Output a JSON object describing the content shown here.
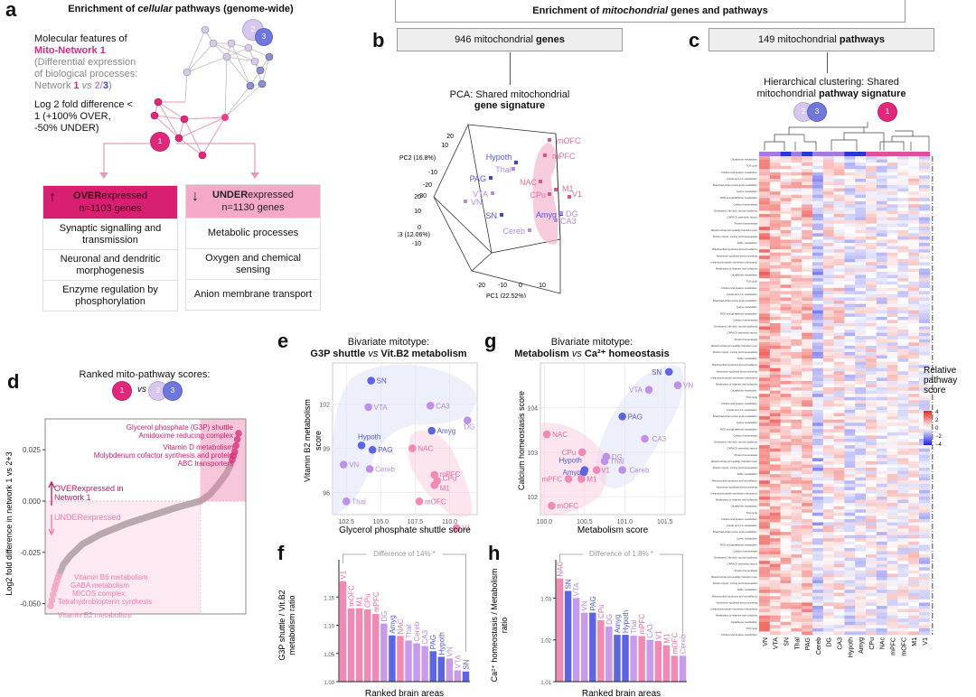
{
  "panel_labels": {
    "a": "a",
    "b": "b",
    "c": "c",
    "d": "d",
    "e": "e",
    "f": "f",
    "g": "g",
    "h": "h"
  },
  "colors": {
    "network1": "#e0287a",
    "network1_light": "#f390b8",
    "network2": "#c3a2e6",
    "network3": "#5d66e0",
    "grey": "#b7a9ae",
    "heat_pos": "#e8261e",
    "heat_neg": "#1d1ee6"
  },
  "panel_a": {
    "title_pre": "Enrichment of ",
    "title_em": "cellular",
    "title_post": " pathways (genome-wide)",
    "desc_line1": "Molecular features of",
    "desc_network": "Mito-Network 1",
    "desc_line3": "(Differential expression",
    "desc_line4": "of biological processes:",
    "desc_line5_pre": "Network ",
    "desc_n1": "1",
    "desc_vs": " vs ",
    "desc_n2": "2",
    "desc_slash": "/",
    "desc_n3": "3",
    "desc_close": ")",
    "log_line1": "Log 2 fold difference <",
    "log_line2": "1 (+100% OVER,",
    "log_line3": "-50% UNDER)",
    "node_labels": {
      "n1": "1",
      "n2": "2",
      "n3": "3"
    },
    "over": {
      "arrow": "↑",
      "bold": "OVER",
      "rest": "expressed",
      "count": "n=1103 genes",
      "items": [
        "Synaptic signalling and transmission",
        "Neuronal and dendritic morphogenesis",
        "Enzyme regulation by phosphorylation"
      ]
    },
    "under": {
      "arrow": "↓",
      "bold": "UNDER",
      "rest": "expressed",
      "count": "n=1130 genes",
      "items": [
        "Metabolic processes",
        "Oxygen and chemical sensing",
        "Anion membrane transport"
      ]
    }
  },
  "header_mito": {
    "pre": "Enrichment of ",
    "em": "mitochondrial",
    "post": " genes and pathways"
  },
  "panel_b": {
    "box_pre": "946 mitochondrial ",
    "box_bold": "genes",
    "title_line1": "PCA: Shared mitochondrial",
    "title_line2": "gene signature",
    "pc1_label": "PC1 (22.52%)",
    "pc2_label": "PC2 (16.8%)",
    "pc3_label": "PC3 (12.06%)",
    "pc2_ticks": [
      "20",
      "10",
      "",
      "-10",
      "-20",
      "-30"
    ],
    "pc3_ticks": [
      "20",
      "10",
      "0",
      "-10"
    ],
    "pc1_ticks": [
      "-20",
      "-10",
      "0",
      "10"
    ],
    "points": [
      {
        "label": "mOFC",
        "net": 1
      },
      {
        "label": "mPFC",
        "net": 1
      },
      {
        "label": "Hypoth",
        "net": 3
      },
      {
        "label": "Thal",
        "net": 2
      },
      {
        "label": "PAG",
        "net": 3
      },
      {
        "label": "NAC",
        "net": 1
      },
      {
        "label": "M1",
        "net": 1
      },
      {
        "label": "V1",
        "net": 1
      },
      {
        "label": "CPu",
        "net": 1
      },
      {
        "label": "VTA",
        "net": 2
      },
      {
        "label": "VN",
        "net": 2
      },
      {
        "label": "SN",
        "net": 3
      },
      {
        "label": "Amyg",
        "net": 3
      },
      {
        "label": "DG",
        "net": 2
      },
      {
        "label": "CA3",
        "net": 2
      },
      {
        "label": "Cereb",
        "net": 2
      }
    ]
  },
  "panel_c": {
    "box_pre": "149 mitochondrial ",
    "box_bold": "pathways",
    "title_line1": "Hierarchical clustering: Shared",
    "title_line2_pre": "mitochondrial ",
    "title_line2_bold": "pathway signature",
    "columns": [
      "VN",
      "VTA",
      "SN",
      "Thal",
      "PAG",
      "Cereb",
      "DG",
      "CA3",
      "Hypoth",
      "Amyg",
      "CPu",
      "NAc",
      "mPFC",
      "mOFC",
      "M1",
      "V1"
    ],
    "column_networks": [
      2,
      2,
      3,
      2,
      3,
      2,
      2,
      2,
      3,
      3,
      1,
      1,
      1,
      1,
      1,
      1
    ],
    "row_count": 149,
    "visible_row_labels": [
      "Glutathione metabolism",
      "TCA cycle",
      "Choline and betaine metabolism",
      "Folate and 1-C metabolism",
      "Branched-chain amino acid metabolism",
      "Lysine metabolism",
      "ROS and glutathione metabolism",
      "Calcium homeostasis",
      "Cholesterol, bile acid, steroid synthesis",
      "OXPHOS assembly factors",
      "Protein homeostasis",
      "Mitochondrial permeability transition pore",
      "Protein import, sorting and homeostasis",
      "Sulfur metabolism",
      "Mitochondrial dynamics and surveillance",
      "Nucleotide synthesis and processing",
      "Intramitochondrial membrane interactions",
      "Metabolism of vitamins and cofactors"
    ],
    "legend_title": [
      "Relative",
      "pathway",
      "score"
    ],
    "legend_ticks": [
      "4",
      "2",
      "0",
      "−2",
      "−4"
    ],
    "legend_range": [
      -4,
      4
    ]
  },
  "panel_d": {
    "title": "Ranked mito-pathway scores:",
    "vs": "vs",
    "ylabel": "Log2 fold difference in network 1 vs 2+3",
    "yticks": [
      "0.025",
      "0.000",
      "-0.025",
      "-0.050"
    ],
    "over_label_1": "OVERexpressed in",
    "over_label_2": "Network 1",
    "under_label": "UNDERexpressed",
    "top_labels": [
      "Glycerol phosphate (G3P) shuttle",
      "Amidoxime reducing complex",
      "Vitamin D metabolism",
      "Molybdenum cofactor synthesis and protein",
      "ABC transporters"
    ],
    "bottom_labels": [
      "Vitamin B6 metabolism",
      "GABA metabolism",
      "MICOS complex",
      "Tetrahydrobiopterin synthesis",
      "Vitamin B2 metabolism"
    ]
  },
  "panel_e": {
    "title_line1": "Bivariate mitotype:",
    "title_bold1": "G3P shuttle ",
    "title_vs": "vs",
    "title_bold2": " Vit.B2 metabolism",
    "xlabel": "Glycerol phosphate shuttle score",
    "ylabel_1": "Vitamin B2 metabolism",
    "ylabel_2": "score",
    "xticks": [
      "102.5",
      "105.0",
      "107.5",
      "110.0"
    ],
    "yticks": [
      "102",
      "99",
      "96"
    ]
  },
  "panel_g": {
    "title_line1": "Bivariate mitotype:",
    "title_bold1": "Metabolism ",
    "title_vs": "vs",
    "title_bold2": " Ca²⁺ homeostasis",
    "xlabel": "Metabolism score",
    "ylabel": "Calcium homeostasis score",
    "xticks": [
      "100.0",
      "100.5",
      "101.0",
      "101.5"
    ],
    "yticks": [
      "104",
      "103",
      "102"
    ]
  },
  "panel_f": {
    "annotation": "Difference of 14% *",
    "ylabel_1": "G3P shuttle / Vit.B2",
    "ylabel_2": "metabolism ratio",
    "xlabel": "Ranked brain areas",
    "yticks": [
      "1.15",
      "1.10",
      "1.05",
      "1.00"
    ]
  },
  "panel_h": {
    "annotation": "Difference of 1.8% *",
    "ylabel_1": "Ca²⁺ homeostasis / Metabolism",
    "ylabel_2": "ratio",
    "xlabel": "Ranked brain areas",
    "yticks": [
      "1.03",
      "1.02",
      "1.01"
    ]
  },
  "chart_data": [
    {
      "id": "d",
      "type": "scatter",
      "title": "Ranked mito-pathway scores: 1 vs 2/3",
      "xlabel": "Pathway rank",
      "ylabel": "Log2 fold difference in network 1 vs 2+3",
      "ylim": [
        -0.055,
        0.04
      ],
      "n_points": 149,
      "annotated_points": [
        {
          "label": "Glycerol phosphate (G3P) shuttle",
          "y": 0.036
        },
        {
          "label": "Amidoxime reducing complex",
          "y": 0.035
        },
        {
          "label": "Vitamin D metabolism",
          "y": 0.031
        },
        {
          "label": "Molybdenum cofactor synthesis and protein",
          "y": 0.029
        },
        {
          "label": "ABC transporters",
          "y": 0.027
        },
        {
          "label": "Vitamin B6 metabolism",
          "y": -0.032
        },
        {
          "label": "GABA metabolism",
          "y": -0.035
        },
        {
          "label": "MICOS complex",
          "y": -0.037
        },
        {
          "label": "Tetrahydrobiopterin synthesis",
          "y": -0.043
        },
        {
          "label": "Vitamin B2 metabolism",
          "y": -0.051
        }
      ],
      "curve_knots": [
        [
          0,
          -0.051
        ],
        [
          3,
          -0.043
        ],
        [
          6,
          -0.037
        ],
        [
          10,
          -0.031
        ],
        [
          15,
          -0.027
        ],
        [
          25,
          -0.021
        ],
        [
          40,
          -0.016
        ],
        [
          60,
          -0.011
        ],
        [
          80,
          -0.007
        ],
        [
          100,
          -0.003
        ],
        [
          118,
          0.0
        ],
        [
          125,
          0.003
        ],
        [
          132,
          0.008
        ],
        [
          138,
          0.013
        ],
        [
          142,
          0.018
        ],
        [
          145,
          0.024
        ],
        [
          149,
          0.036
        ]
      ]
    },
    {
      "id": "e",
      "type": "scatter",
      "title": "Bivariate mitotype: G3P shuttle vs Vit.B2 metabolism",
      "xlabel": "Glycerol phosphate shuttle score",
      "ylabel": "Vitamin B2 metabolism score",
      "xlim": [
        101.5,
        112
      ],
      "ylim": [
        94.5,
        104.8
      ],
      "points": [
        {
          "label": "SN",
          "x": 104.3,
          "y": 103.6,
          "net": 3
        },
        {
          "label": "VTA",
          "x": 104.1,
          "y": 101.8,
          "net": 2
        },
        {
          "label": "CA3",
          "x": 108.6,
          "y": 101.9,
          "net": 2
        },
        {
          "label": "DG",
          "x": 111.3,
          "y": 100.9,
          "net": 2
        },
        {
          "label": "Amyg",
          "x": 108.7,
          "y": 100.2,
          "net": 3
        },
        {
          "label": "Hypoth",
          "x": 103.6,
          "y": 99.2,
          "net": 3
        },
        {
          "label": "PAG",
          "x": 104.4,
          "y": 98.9,
          "net": 3
        },
        {
          "label": "NAC",
          "x": 107.3,
          "y": 99.0,
          "net": 1
        },
        {
          "label": "VN",
          "x": 102.3,
          "y": 97.9,
          "net": 2
        },
        {
          "label": "Cereb",
          "x": 104.2,
          "y": 97.6,
          "net": 2
        },
        {
          "label": "mPFC",
          "x": 108.9,
          "y": 97.2,
          "net": 1
        },
        {
          "label": "CPu",
          "x": 109.1,
          "y": 96.8,
          "net": 1
        },
        {
          "label": "M1",
          "x": 108.9,
          "y": 96.5,
          "net": 1
        },
        {
          "label": "Thal",
          "x": 102.5,
          "y": 95.4,
          "net": 2
        },
        {
          "label": "mOFC",
          "x": 107.8,
          "y": 95.4,
          "net": 1
        },
        {
          "label": "V1",
          "x": 110.5,
          "y": 93.6,
          "net": 1
        }
      ]
    },
    {
      "id": "g",
      "type": "scatter",
      "title": "Bivariate mitotype: Metabolism vs Ca2+ homeostasis",
      "xlabel": "Metabolism score",
      "ylabel": "Calcium homeostasis score",
      "xlim": [
        99.95,
        101.75
      ],
      "ylim": [
        101.6,
        105.0
      ],
      "points": [
        {
          "label": "SN",
          "x": 101.55,
          "y": 104.8,
          "net": 3
        },
        {
          "label": "VN",
          "x": 101.66,
          "y": 104.5,
          "net": 2
        },
        {
          "label": "VTA",
          "x": 101.3,
          "y": 104.4,
          "net": 2
        },
        {
          "label": "PAG",
          "x": 100.97,
          "y": 103.8,
          "net": 3
        },
        {
          "label": "NAC",
          "x": 100.03,
          "y": 103.4,
          "net": 1
        },
        {
          "label": "CA3",
          "x": 101.25,
          "y": 103.3,
          "net": 2
        },
        {
          "label": "DG",
          "x": 100.77,
          "y": 102.9,
          "net": 2
        },
        {
          "label": "CPu",
          "x": 100.47,
          "y": 103.0,
          "net": 1
        },
        {
          "label": "Thal",
          "x": 100.75,
          "y": 102.8,
          "net": 2
        },
        {
          "label": "V1",
          "x": 100.65,
          "y": 102.6,
          "net": 1
        },
        {
          "label": "Cereb",
          "x": 100.97,
          "y": 102.6,
          "net": 2
        },
        {
          "label": "Hypoth",
          "x": 100.5,
          "y": 102.6,
          "net": 3
        },
        {
          "label": "Amyg",
          "x": 100.49,
          "y": 102.55,
          "net": 3
        },
        {
          "label": "mPFC",
          "x": 100.3,
          "y": 102.4,
          "net": 1
        },
        {
          "label": "M1",
          "x": 100.46,
          "y": 102.4,
          "net": 1
        },
        {
          "label": "mOFC",
          "x": 100.09,
          "y": 101.8,
          "net": 1
        }
      ]
    },
    {
      "id": "f",
      "type": "bar",
      "title": "Difference of 14% *",
      "xlabel": "Ranked brain areas",
      "ylabel": "G3P shuttle / Vit.B2 metabolism ratio",
      "ylim": [
        1.0,
        1.2
      ],
      "categories": [
        "V1",
        "mOFC",
        "M1",
        "CPu",
        "mPFC",
        "DG",
        "Amyg",
        "NAC",
        "Thal",
        "Cereb",
        "CA3",
        "PAG",
        "Hypoth",
        "VN",
        "VTA",
        "SN"
      ],
      "values": [
        1.178,
        1.13,
        1.13,
        1.128,
        1.12,
        1.103,
        1.082,
        1.081,
        1.073,
        1.068,
        1.063,
        1.054,
        1.044,
        1.041,
        1.02,
        1.018
      ],
      "networks": [
        1,
        1,
        1,
        1,
        1,
        2,
        3,
        1,
        2,
        2,
        2,
        3,
        3,
        2,
        2,
        3
      ]
    },
    {
      "id": "h",
      "type": "bar",
      "title": "Difference of 1.8% *",
      "xlabel": "Ranked brain areas",
      "ylabel": "Ca2+ homeostasis / Metabolism ratio",
      "ylim": [
        1.01,
        1.037
      ],
      "categories": [
        "NAC",
        "SN",
        "VTA",
        "VN",
        "PAG",
        "CPu",
        "DG",
        "Amyg",
        "Hypoth",
        "Thal",
        "mPFC",
        "CA3",
        "V1",
        "M1",
        "mOFC",
        "Cereb"
      ],
      "values": [
        1.0347,
        1.0317,
        1.03,
        1.0265,
        1.0265,
        1.0247,
        1.0232,
        1.0212,
        1.0212,
        1.021,
        1.0209,
        1.02,
        1.0197,
        1.0187,
        1.0162,
        1.0162
      ],
      "networks": [
        1,
        3,
        2,
        2,
        3,
        1,
        2,
        3,
        3,
        2,
        1,
        2,
        1,
        1,
        1,
        2
      ]
    },
    {
      "id": "c",
      "type": "heatmap",
      "title": "Hierarchical clustering: Shared mitochondrial pathway signature",
      "columns": [
        "VN",
        "VTA",
        "SN",
        "Thal",
        "PAG",
        "Cereb",
        "DG",
        "CA3",
        "Hypoth",
        "Amyg",
        "CPu",
        "NAc",
        "mPFC",
        "mOFC",
        "M1",
        "V1"
      ],
      "n_rows": 149,
      "value_range": [
        -4,
        4
      ],
      "colorbar_label": "Relative pathway score"
    }
  ]
}
